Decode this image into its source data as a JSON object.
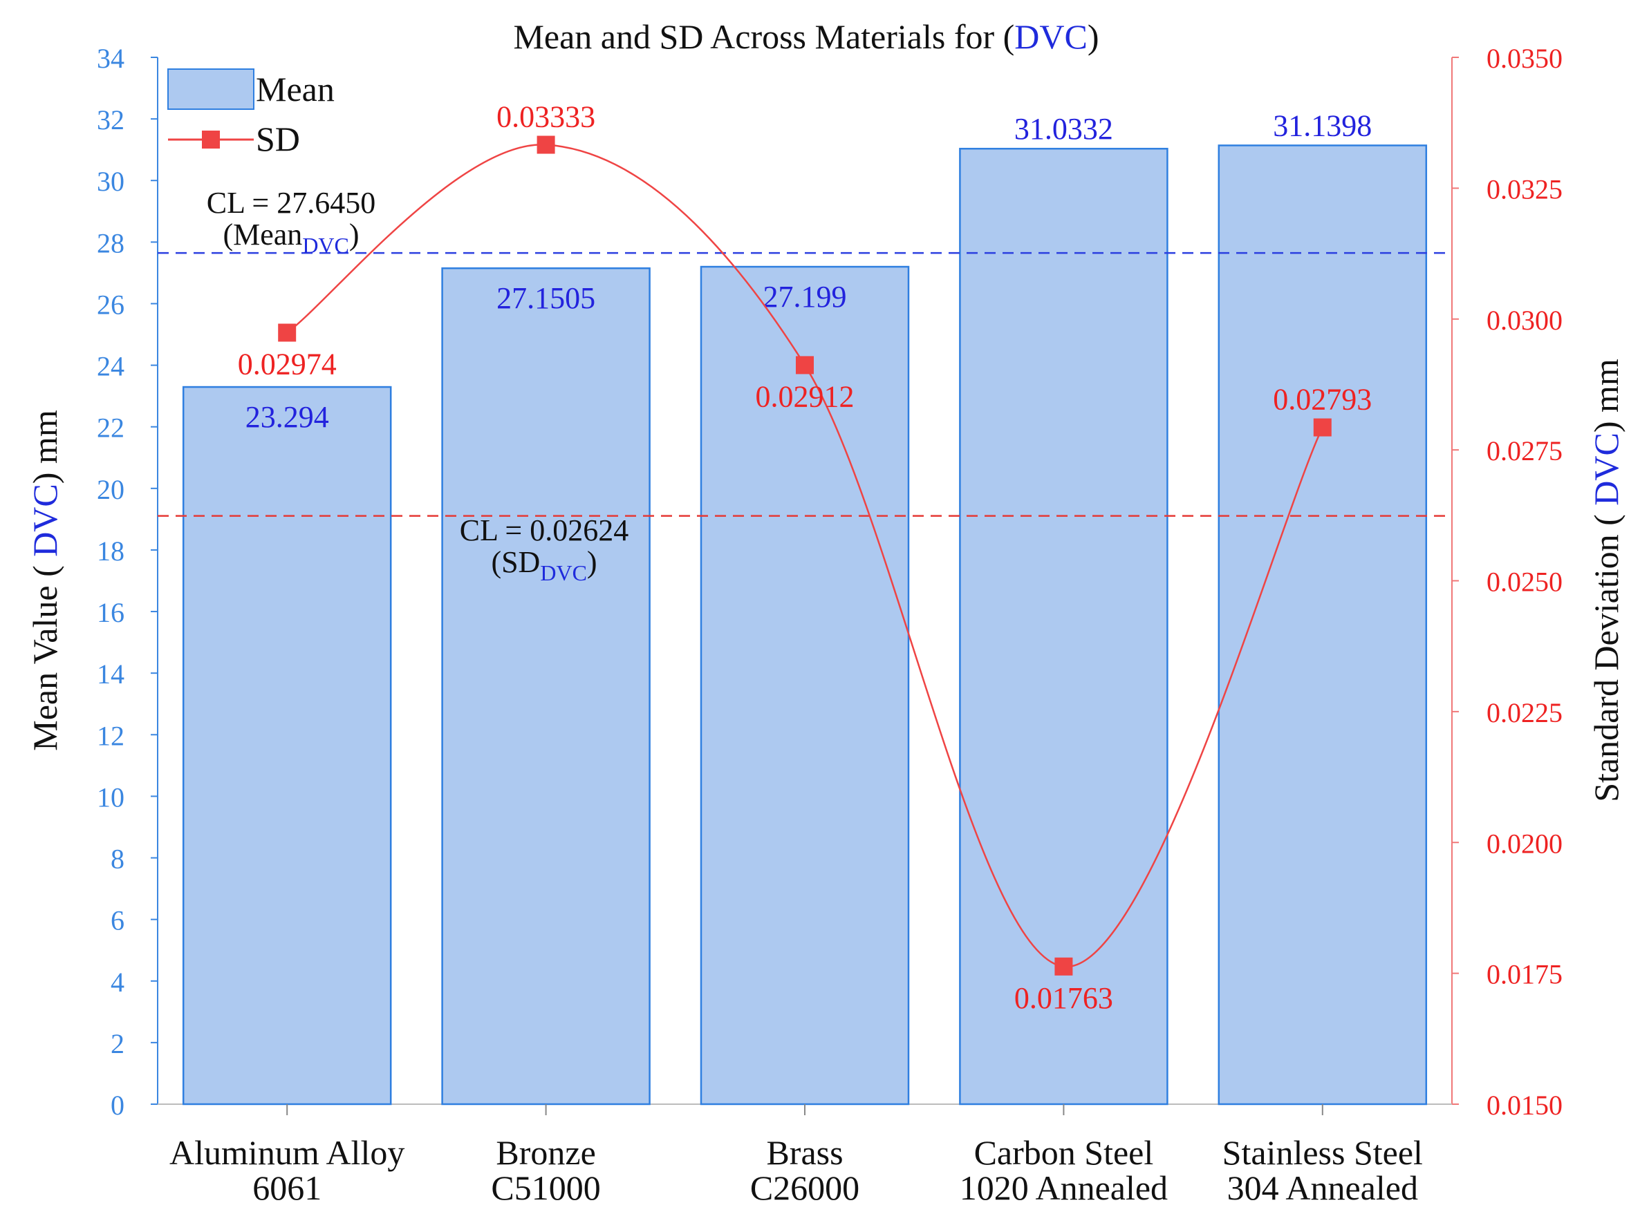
{
  "chart_data": {
    "type": "bar",
    "title": {
      "prefix": "Mean and SD Across Materials for (",
      "highlight": "DVC",
      "suffix": ")"
    },
    "categories": [
      {
        "line1": "Aluminum Alloy",
        "line2": "6061"
      },
      {
        "line1": "Bronze",
        "line2": "C51000"
      },
      {
        "line1": "Brass",
        "line2": "C26000"
      },
      {
        "line1": "Carbon Steel",
        "line2": "1020 Annealed"
      },
      {
        "line1": "Stainless Steel",
        "line2": "304 Annealed"
      }
    ],
    "series": [
      {
        "name": "Mean",
        "type": "bar",
        "axis": "left",
        "values": [
          23.294,
          27.1505,
          27.199,
          31.0332,
          31.1398
        ],
        "labels": [
          "23.294",
          "27.1505",
          "27.199",
          "31.0332",
          "31.1398"
        ]
      },
      {
        "name": "SD",
        "type": "line",
        "axis": "right",
        "values": [
          0.02974,
          0.03333,
          0.02912,
          0.01763,
          0.02793
        ],
        "labels": [
          "0.02974",
          "0.03333",
          "0.02912",
          "0.01763",
          "0.02793"
        ]
      }
    ],
    "left_axis": {
      "label": {
        "prefix": "Mean Value ( ",
        "highlight": "DVC",
        "suffix": ") mm"
      },
      "min": 0,
      "max": 34,
      "step": 2,
      "ticks": [
        "0",
        "2",
        "4",
        "6",
        "8",
        "10",
        "12",
        "14",
        "16",
        "18",
        "20",
        "22",
        "24",
        "26",
        "28",
        "30",
        "32",
        "34"
      ]
    },
    "right_axis": {
      "label": {
        "prefix": "Standard Deviation ( ",
        "highlight": "DVC",
        "suffix": ") mm"
      },
      "min": 0.015,
      "max": 0.035,
      "step": 0.0025,
      "ticks": [
        "0.0150",
        "0.0175",
        "0.0200",
        "0.0225",
        "0.0250",
        "0.0275",
        "0.0300",
        "0.0325",
        "0.0350"
      ]
    },
    "control_lines": [
      {
        "axis": "left",
        "value": 27.645,
        "label_main": "CL = 27.6450",
        "label_sub_prefix": "(Mean",
        "label_sub_subscript": "DVC",
        "label_sub_suffix": ")"
      },
      {
        "axis": "right",
        "value": 0.02624,
        "label_main": "CL = 0.02624",
        "label_sub_prefix": "(SD",
        "label_sub_subscript": "DVC",
        "label_sub_suffix": ")"
      }
    ],
    "legend": {
      "position": "top-left",
      "entries": [
        "Mean",
        "SD"
      ]
    },
    "colors": {
      "bar_fill": "#adc9f0",
      "bar_stroke": "#2f7fe0",
      "left_axis": "#3a86e0",
      "right_axis": "#f07878",
      "sd_line": "#ef4444",
      "sd_marker": "#ef4444",
      "mean_cl": "#2b3fe0",
      "sd_cl": "#e53935",
      "bar_label": "#2222dd",
      "sd_label": "#ee2222",
      "highlight": "#1f2bdc",
      "text": "#111111"
    }
  }
}
